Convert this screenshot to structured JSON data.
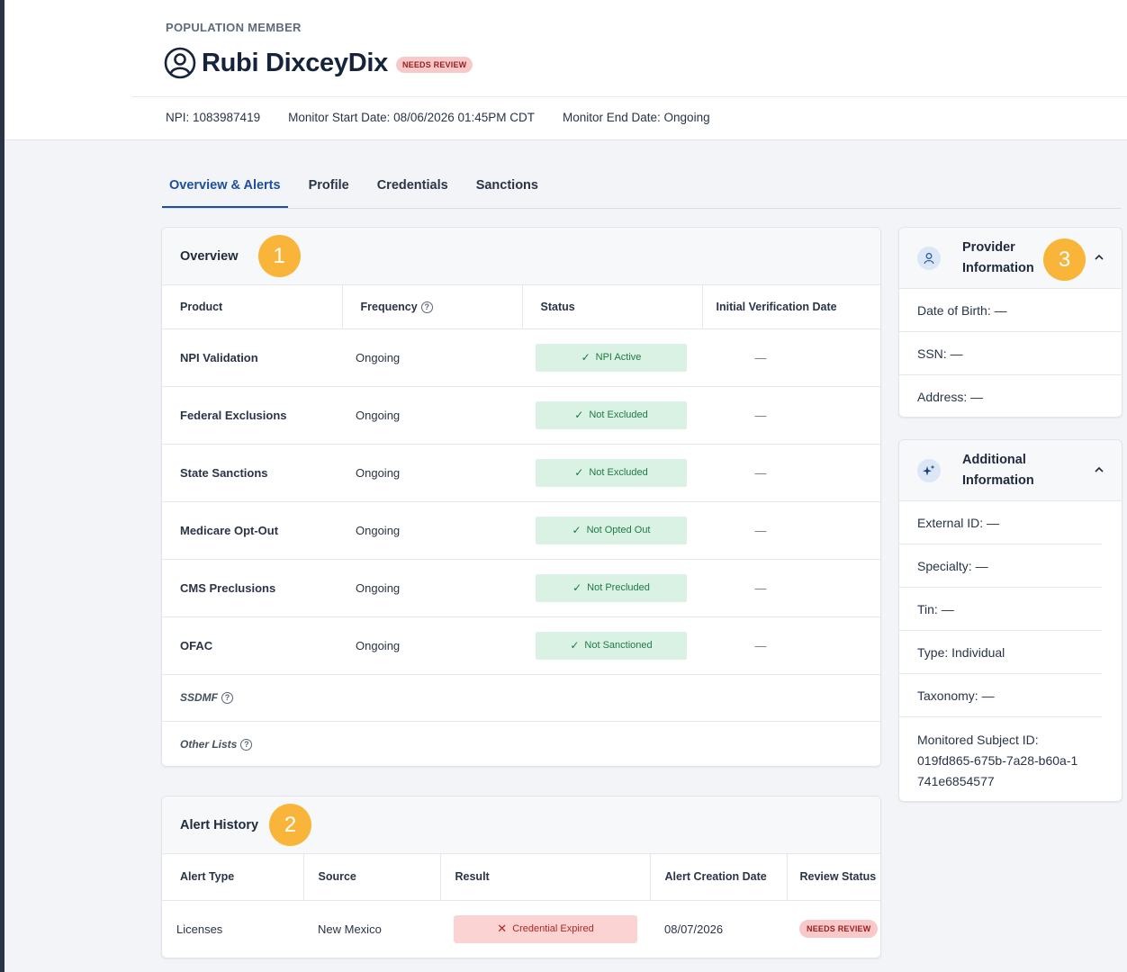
{
  "header": {
    "eyebrow": "POPULATION MEMBER",
    "name": "Rubi DixceyDix",
    "badge": "NEEDS REVIEW",
    "npi": "NPI: 1083987419",
    "start_date": "Monitor Start Date: 08/06/2026 01:45PM CDT",
    "end_date": "Monitor End Date: Ongoing"
  },
  "tabs": [
    {
      "label": "Overview & Alerts",
      "active": true
    },
    {
      "label": "Profile",
      "active": false
    },
    {
      "label": "Credentials",
      "active": false
    },
    {
      "label": "Sanctions",
      "active": false
    }
  ],
  "overview": {
    "title": "Overview",
    "marker": "1",
    "columns": [
      "Product",
      "Frequency",
      "Status",
      "Initial Verification Date"
    ],
    "rows": [
      {
        "product": "NPI Validation",
        "frequency": "Ongoing",
        "status": "NPI Active",
        "date": "—"
      },
      {
        "product": "Federal Exclusions",
        "frequency": "Ongoing",
        "status": "Not Excluded",
        "date": "—"
      },
      {
        "product": "State Sanctions",
        "frequency": "Ongoing",
        "status": "Not Excluded",
        "date": "—"
      },
      {
        "product": "Medicare Opt-Out",
        "frequency": "Ongoing",
        "status": "Not Opted Out",
        "date": "—"
      },
      {
        "product": "CMS Preclusions",
        "frequency": "Ongoing",
        "status": "Not Precluded",
        "date": "—"
      },
      {
        "product": "OFAC",
        "frequency": "Ongoing",
        "status": "Not Sanctioned",
        "date": "—"
      }
    ],
    "extra_rows": [
      "SSDMF",
      "Other Lists"
    ]
  },
  "alerts": {
    "title": "Alert History",
    "marker": "2",
    "columns": [
      "Alert Type",
      "Source",
      "Result",
      "Alert Creation Date",
      "Review Status"
    ],
    "rows": [
      {
        "type": "Licenses",
        "source": "New Mexico",
        "result": "Credential Expired",
        "date": "08/07/2026",
        "review": "NEEDS REVIEW"
      }
    ]
  },
  "provider": {
    "title": "Provider Information",
    "marker": "3",
    "fields": [
      "Date of Birth: —",
      "SSN: —",
      "Address: —"
    ]
  },
  "additional": {
    "title": "Additional Information",
    "fields": [
      "External ID: —",
      "Specialty: —",
      "Tin: —",
      "Type: Individual",
      "Taxonomy: —"
    ],
    "subject_label": "Monitored Subject ID:",
    "subject_id": "019fd865-675b-7a28-b60a-1741e6854577"
  },
  "colors": {
    "accent": "#1d4f9c",
    "marker": "#f8b53a",
    "success_bg": "#d9f2e4",
    "success_text": "#1f7a45",
    "danger_bg": "#fbd3d3",
    "danger_text": "#b3261e"
  },
  "icons": [
    "person-circle-icon",
    "help-icon",
    "check-icon",
    "x-icon",
    "user-icon",
    "sparkle-icon",
    "chevron-up-icon"
  ]
}
